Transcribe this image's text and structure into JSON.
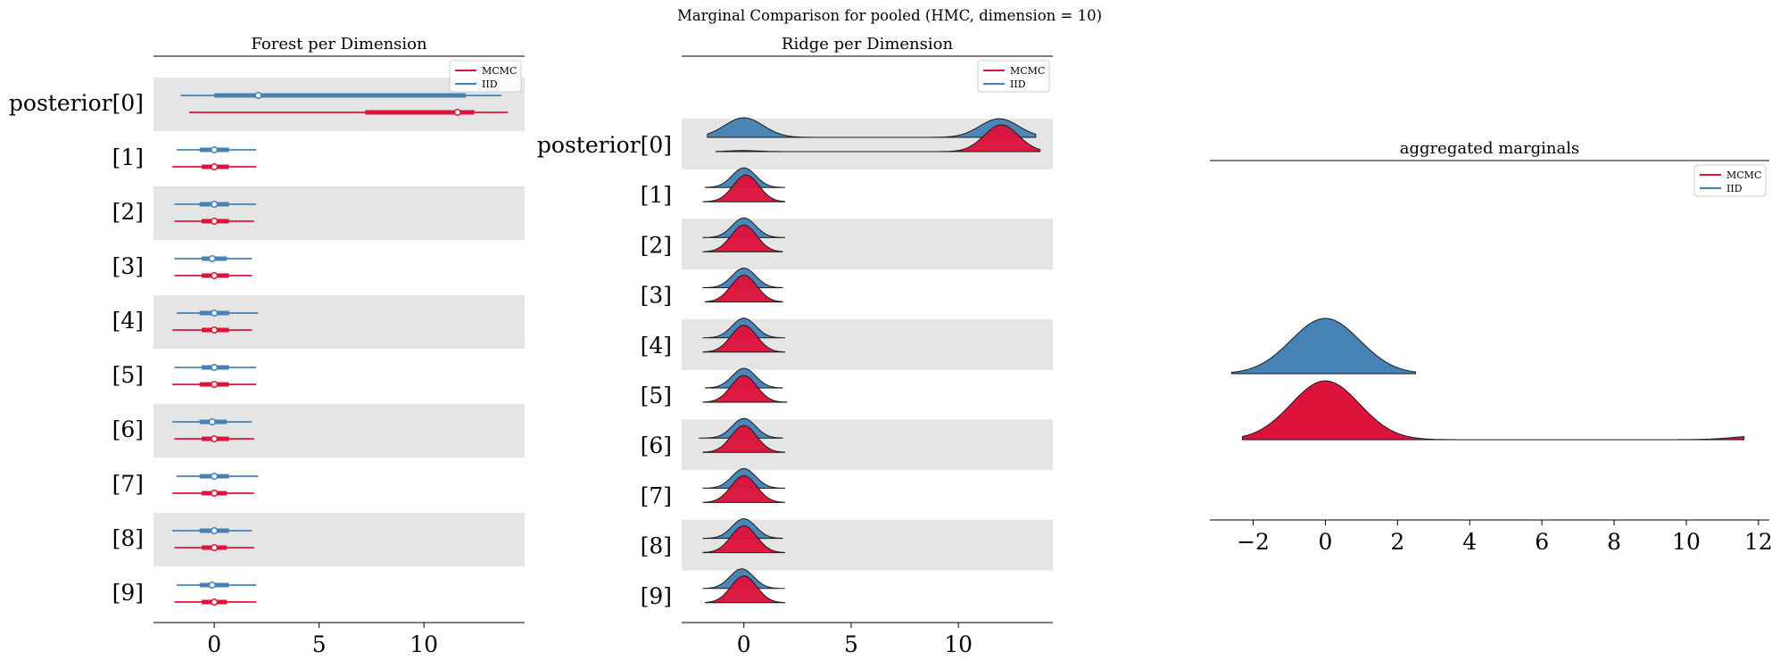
{
  "figure": {
    "suptitle": "Marginal Comparison for pooled (HMC, dimension = 10)"
  },
  "colors": {
    "mcmc": "#dc143c",
    "iid": "#4682b4",
    "band": "#e5e5e5",
    "axis": "#000000"
  },
  "chart_data": [
    {
      "type": "forest",
      "title": "Forest per Dimension",
      "xlim": [
        -2.9,
        14.8
      ],
      "xticks": [
        0,
        5,
        10
      ],
      "row_labels": [
        "posterior[0]",
        "[1]",
        "[2]",
        "[3]",
        "[4]",
        "[5]",
        "[6]",
        "[7]",
        "[8]",
        "[9]"
      ],
      "legend": {
        "placement": "top-right",
        "entries": [
          "MCMC",
          "IID"
        ]
      },
      "series": [
        {
          "name": "IID",
          "color": "iid",
          "rows": [
            {
              "lo": -1.6,
              "q1": 0.0,
              "median": 2.1,
              "q3": 12.0,
              "hi": 13.7
            },
            {
              "lo": -1.8,
              "q1": -0.7,
              "median": 0.0,
              "q3": 0.7,
              "hi": 2.0
            },
            {
              "lo": -1.9,
              "q1": -0.7,
              "median": 0.0,
              "q3": 0.7,
              "hi": 2.0
            },
            {
              "lo": -1.9,
              "q1": -0.6,
              "median": -0.1,
              "q3": 0.6,
              "hi": 1.8
            },
            {
              "lo": -1.8,
              "q1": -0.7,
              "median": 0.0,
              "q3": 0.7,
              "hi": 2.1
            },
            {
              "lo": -1.9,
              "q1": -0.6,
              "median": 0.0,
              "q3": 0.7,
              "hi": 2.0
            },
            {
              "lo": -2.0,
              "q1": -0.7,
              "median": -0.1,
              "q3": 0.6,
              "hi": 1.8
            },
            {
              "lo": -1.8,
              "q1": -0.7,
              "median": 0.0,
              "q3": 0.7,
              "hi": 2.1
            },
            {
              "lo": -2.0,
              "q1": -0.7,
              "median": 0.0,
              "q3": 0.7,
              "hi": 1.8
            },
            {
              "lo": -1.8,
              "q1": -0.7,
              "median": -0.1,
              "q3": 0.7,
              "hi": 2.0
            }
          ]
        },
        {
          "name": "MCMC",
          "color": "mcmc",
          "rows": [
            {
              "lo": -1.2,
              "q1": 7.2,
              "median": 11.6,
              "q3": 12.4,
              "hi": 14.0
            },
            {
              "lo": -2.0,
              "q1": -0.6,
              "median": 0.0,
              "q3": 0.7,
              "hi": 2.0
            },
            {
              "lo": -1.9,
              "q1": -0.6,
              "median": 0.0,
              "q3": 0.7,
              "hi": 1.9
            },
            {
              "lo": -1.9,
              "q1": -0.6,
              "median": 0.0,
              "q3": 0.7,
              "hi": 1.8
            },
            {
              "lo": -2.0,
              "q1": -0.6,
              "median": 0.0,
              "q3": 0.7,
              "hi": 1.8
            },
            {
              "lo": -2.0,
              "q1": -0.7,
              "median": 0.0,
              "q3": 0.7,
              "hi": 2.0
            },
            {
              "lo": -1.9,
              "q1": -0.6,
              "median": 0.0,
              "q3": 0.7,
              "hi": 1.9
            },
            {
              "lo": -2.0,
              "q1": -0.6,
              "median": 0.0,
              "q3": 0.6,
              "hi": 1.9
            },
            {
              "lo": -1.9,
              "q1": -0.6,
              "median": 0.0,
              "q3": 0.6,
              "hi": 1.9
            },
            {
              "lo": -1.9,
              "q1": -0.6,
              "median": 0.0,
              "q3": 0.6,
              "hi": 2.0
            }
          ]
        }
      ]
    },
    {
      "type": "ridge",
      "title": "Ridge per Dimension",
      "xlim": [
        -2.9,
        14.4
      ],
      "xticks": [
        0,
        5,
        10
      ],
      "row_labels": [
        "posterior[0]",
        "[1]",
        "[2]",
        "[3]",
        "[4]",
        "[5]",
        "[6]",
        "[7]",
        "[8]",
        "[9]"
      ],
      "legend": {
        "placement": "top-right",
        "entries": [
          "MCMC",
          "IID"
        ]
      },
      "series": [
        {
          "name": "IID",
          "color": "iid",
          "rows": [
            {
              "lo": -1.7,
              "hi": 13.6,
              "modes": [
                [
                  0.0,
                  0.9,
                  1.0
                ],
                [
                  11.9,
                  0.9,
                  0.95
                ]
              ]
            },
            {
              "lo": -1.8,
              "hi": 1.9,
              "modes": [
                [
                  0.0,
                  0.55,
                  1.0
                ]
              ]
            },
            {
              "lo": -1.9,
              "hi": 1.9,
              "modes": [
                [
                  0.0,
                  0.55,
                  1.0
                ]
              ]
            },
            {
              "lo": -1.9,
              "hi": 1.8,
              "modes": [
                [
                  0.0,
                  0.55,
                  1.0
                ]
              ]
            },
            {
              "lo": -1.9,
              "hi": 1.9,
              "modes": [
                [
                  0.0,
                  0.55,
                  1.0
                ]
              ]
            },
            {
              "lo": -1.8,
              "hi": 1.8,
              "modes": [
                [
                  0.0,
                  0.55,
                  1.0
                ]
              ]
            },
            {
              "lo": -2.1,
              "hi": 1.8,
              "modes": [
                [
                  0.0,
                  0.55,
                  1.0
                ]
              ]
            },
            {
              "lo": -1.9,
              "hi": 1.9,
              "modes": [
                [
                  0.0,
                  0.55,
                  1.0
                ]
              ]
            },
            {
              "lo": -1.9,
              "hi": 1.8,
              "modes": [
                [
                  0.0,
                  0.55,
                  1.0
                ]
              ]
            },
            {
              "lo": -1.9,
              "hi": 1.9,
              "modes": [
                [
                  -0.1,
                  0.55,
                  1.0
                ]
              ]
            }
          ]
        },
        {
          "name": "MCMC",
          "color": "mcmc",
          "rows": [
            {
              "lo": -1.3,
              "hi": 13.8,
              "modes": [
                [
                  0.0,
                  0.7,
                  0.04
                ],
                [
                  12.0,
                  0.8,
                  1.0
                ]
              ]
            },
            {
              "lo": -1.9,
              "hi": 1.9,
              "modes": [
                [
                  0.1,
                  0.6,
                  1.0
                ]
              ]
            },
            {
              "lo": -1.9,
              "hi": 1.8,
              "modes": [
                [
                  0.0,
                  0.6,
                  1.0
                ]
              ]
            },
            {
              "lo": -1.8,
              "hi": 1.8,
              "modes": [
                [
                  0.0,
                  0.6,
                  1.0
                ]
              ]
            },
            {
              "lo": -1.9,
              "hi": 1.9,
              "modes": [
                [
                  0.0,
                  0.6,
                  1.0
                ]
              ]
            },
            {
              "lo": -1.9,
              "hi": 2.0,
              "modes": [
                [
                  0.0,
                  0.6,
                  1.0
                ]
              ]
            },
            {
              "lo": -1.9,
              "hi": 1.9,
              "modes": [
                [
                  0.0,
                  0.6,
                  1.0
                ]
              ]
            },
            {
              "lo": -1.9,
              "hi": 1.9,
              "modes": [
                [
                  0.0,
                  0.6,
                  1.0
                ]
              ]
            },
            {
              "lo": -1.9,
              "hi": 1.9,
              "modes": [
                [
                  0.0,
                  0.6,
                  1.0
                ]
              ]
            },
            {
              "lo": -1.8,
              "hi": 1.9,
              "modes": [
                [
                  0.0,
                  0.6,
                  1.0
                ]
              ]
            }
          ]
        }
      ]
    },
    {
      "type": "ridge",
      "title": "aggregated marginals",
      "xlim": [
        -3.2,
        12.3
      ],
      "xticks": [
        -2,
        0,
        2,
        4,
        6,
        8,
        10,
        12
      ],
      "xtick_labels": [
        "−2",
        "0",
        "2",
        "4",
        "6",
        "8",
        "10",
        "12"
      ],
      "legend": {
        "placement": "top-right",
        "entries": [
          "MCMC",
          "IID"
        ]
      },
      "series": [
        {
          "name": "IID",
          "color": "iid",
          "lo": -2.6,
          "hi": 2.5,
          "modes": [
            [
              0.0,
              0.95,
              1.0
            ]
          ]
        },
        {
          "name": "MCMC",
          "color": "mcmc",
          "lo": -2.3,
          "hi": 11.6,
          "modes": [
            [
              0.0,
              0.95,
              1.0
            ],
            [
              12.2,
              0.8,
              0.07
            ]
          ]
        }
      ]
    }
  ]
}
